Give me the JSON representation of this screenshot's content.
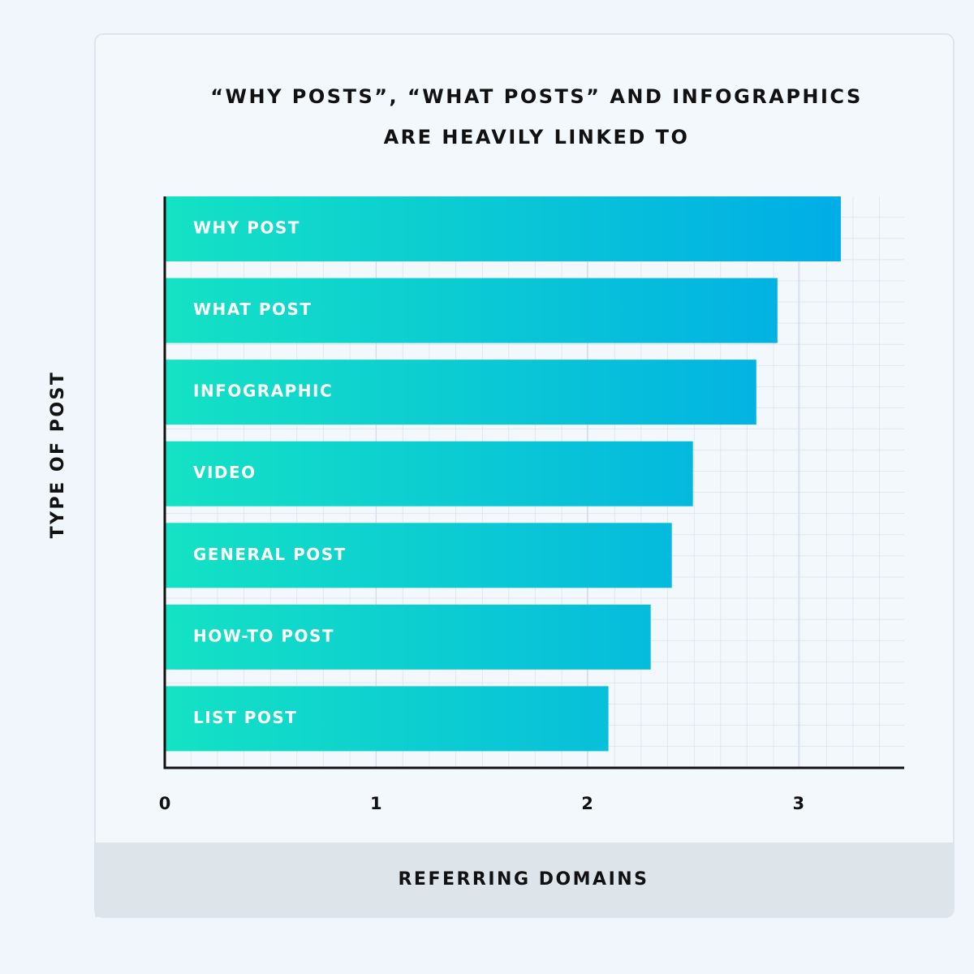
{
  "chart_data": {
    "type": "barh",
    "title": [
      "“WHY POSTS”, “WHAT POSTS” AND INFOGRAPHICS",
      "ARE HEAVILY LINKED TO"
    ],
    "x_label": "REFERRING DOMAINS",
    "y_label": "TYPE OF POST",
    "categories": [
      "WHY POST",
      "WHAT POST",
      "INFOGRAPHIC",
      "VIDEO",
      "GENERAL POST",
      "HOW-TO POST",
      "LIST POST"
    ],
    "values": [
      3.2,
      2.9,
      2.8,
      2.5,
      2.4,
      2.3,
      2.1
    ],
    "gradient": [
      "#14e2c4",
      "#00ade6"
    ],
    "xlim": [
      0,
      3.5
    ],
    "xticks": [
      0,
      1,
      2,
      3
    ],
    "grid": true
  }
}
